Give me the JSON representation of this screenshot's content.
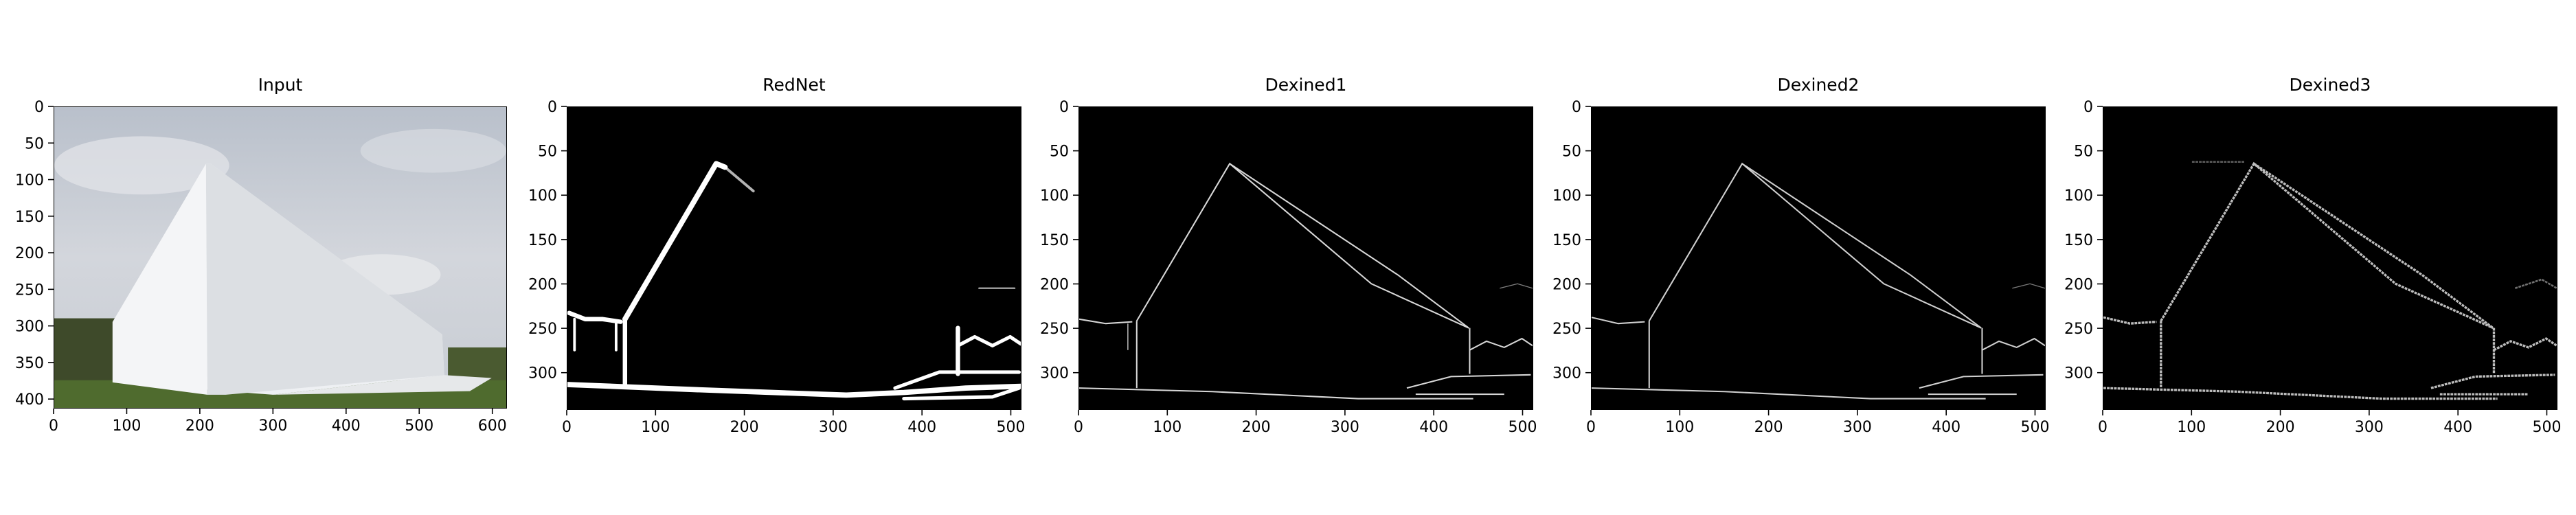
{
  "figure": {
    "panels": [
      {
        "id": "input",
        "title": "Input",
        "kind": "photo",
        "xticks": [
          "0",
          "100",
          "200",
          "300",
          "400",
          "500",
          "600"
        ],
        "yticks": [
          "0",
          "50",
          "100",
          "150",
          "200",
          "250",
          "300",
          "350",
          "400"
        ],
        "xlim": [
          0,
          620
        ],
        "ylim": [
          0,
          413
        ]
      },
      {
        "id": "rednet",
        "title": "RedNet",
        "kind": "edge-thick",
        "xticks": [
          "0",
          "100",
          "200",
          "300",
          "400",
          "500"
        ],
        "yticks": [
          "0",
          "50",
          "100",
          "150",
          "200",
          "250",
          "300"
        ],
        "xlim": [
          0,
          512
        ],
        "ylim": [
          0,
          342
        ]
      },
      {
        "id": "dexined1",
        "title": "Dexined1",
        "kind": "edge-thin",
        "xticks": [
          "0",
          "100",
          "200",
          "300",
          "400",
          "500"
        ],
        "yticks": [
          "0",
          "50",
          "100",
          "150",
          "200",
          "250",
          "300"
        ],
        "xlim": [
          0,
          512
        ],
        "ylim": [
          0,
          342
        ]
      },
      {
        "id": "dexined2",
        "title": "Dexined2",
        "kind": "edge-thin",
        "xticks": [
          "0",
          "100",
          "200",
          "300",
          "400",
          "500"
        ],
        "yticks": [
          "0",
          "50",
          "100",
          "150",
          "200",
          "250",
          "300"
        ],
        "xlim": [
          0,
          512
        ],
        "ylim": [
          0,
          342
        ]
      },
      {
        "id": "dexined3",
        "title": "Dexined3",
        "kind": "edge-blocky",
        "xticks": [
          "0",
          "100",
          "200",
          "300",
          "400",
          "500"
        ],
        "yticks": [
          "0",
          "50",
          "100",
          "150",
          "200",
          "250",
          "300"
        ],
        "xlim": [
          0,
          512
        ],
        "ylim": [
          0,
          342
        ]
      }
    ],
    "colors": {
      "background": "#ffffff",
      "edge_bg": "#000000",
      "edge_fg": "#ffffff",
      "sky": "#c9ced6",
      "wall_light": "#eef0f3",
      "wall_shade": "#d6dade",
      "grass": "#4f6b2e"
    }
  }
}
